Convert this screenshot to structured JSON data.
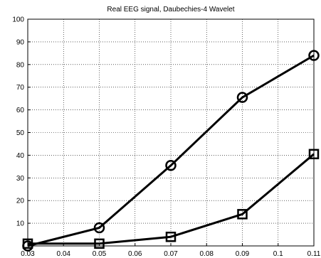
{
  "chart_data": {
    "type": "line",
    "title": "Real EEG signal, Daubechies-4 Wavelet",
    "xlabel": "",
    "ylabel": "",
    "xlim": [
      0.03,
      0.11
    ],
    "ylim": [
      0,
      100
    ],
    "x_ticks": [
      "0.03",
      "0.04",
      "0.05",
      "0.06",
      "0.07",
      "0.08",
      "0.09",
      "0.1",
      "0.11"
    ],
    "y_ticks": [
      "10",
      "20",
      "30",
      "40",
      "50",
      "60",
      "70",
      "80",
      "90",
      "100"
    ],
    "grid": true,
    "series": [
      {
        "marker": "circle",
        "color": "#000000",
        "x": [
          0.03,
          0.05,
          0.07,
          0.09,
          0.11
        ],
        "y": [
          0,
          8,
          35.5,
          65.5,
          84
        ]
      },
      {
        "marker": "square",
        "color": "#000000",
        "x": [
          0.03,
          0.05,
          0.07,
          0.09,
          0.11
        ],
        "y": [
          1,
          1,
          4,
          14,
          40.5
        ]
      }
    ]
  }
}
